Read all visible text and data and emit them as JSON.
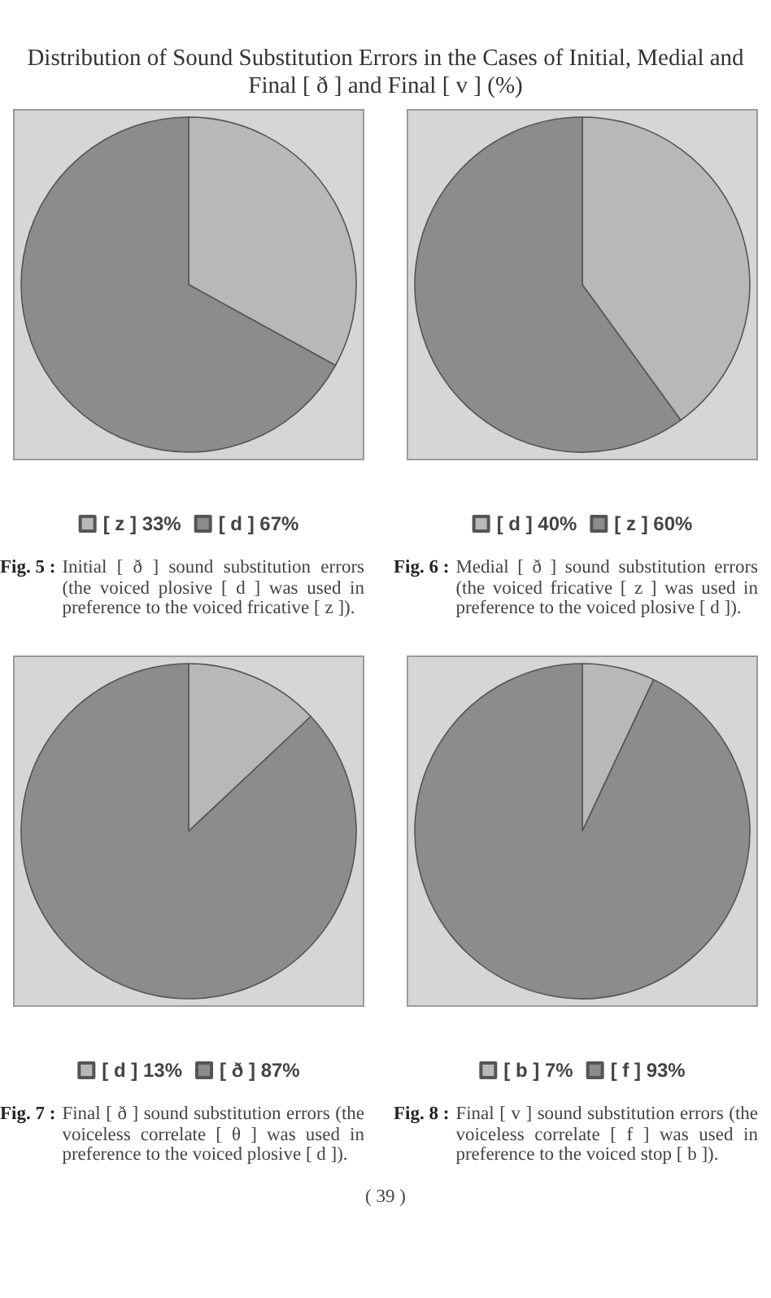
{
  "chart_data": [
    {
      "type": "pie",
      "title": "Distribution of Sound Substitution Errors in the Cases of Initial, Medial and Final [ ð ] and Final [ v ] (%)",
      "categories": [
        "[ z ]",
        "[ d ]"
      ],
      "values": [
        33,
        67
      ],
      "value_labels": [
        "33%",
        "67%"
      ],
      "colors": [
        "#b8b8b8",
        "#8c8c8c"
      ],
      "legend": "bottom",
      "annotations": [
        "Fig. 5 : Initial [ ð ] sound substitution errors (the voiced plosive [ d ] was used in preference to the voiced fricative [ z ])."
      ]
    },
    {
      "type": "pie",
      "categories": [
        "[ d ]",
        "[ z ]"
      ],
      "values": [
        40,
        60
      ],
      "value_labels": [
        "40%",
        "60%"
      ],
      "colors": [
        "#b8b8b8",
        "#8c8c8c"
      ],
      "legend": "bottom",
      "annotations": [
        "Fig. 6 : Medial [ ð ] sound substitution errors (the voiced fricative [ z ] was used in preference to the voiced plosive [ d ])."
      ]
    },
    {
      "type": "pie",
      "categories": [
        "[ d ]",
        "[ ð ]"
      ],
      "values": [
        13,
        87
      ],
      "value_labels": [
        "13%",
        "87%"
      ],
      "colors": [
        "#b8b8b8",
        "#8c8c8c"
      ],
      "legend": "bottom",
      "annotations": [
        "Fig. 7 : Final [ ð ] sound substitution errors (the voiceless correlate [ θ ] was used in preference to the voiced plosive [ d ])."
      ]
    },
    {
      "type": "pie",
      "categories": [
        "[ b ]",
        "[ f ]"
      ],
      "values": [
        7,
        93
      ],
      "value_labels": [
        "7%",
        "93%"
      ],
      "colors": [
        "#b8b8b8",
        "#8c8c8c"
      ],
      "legend": "bottom",
      "annotations": [
        "Fig. 8 : Final [ v ] sound substitution errors (the voiceless correlate [ f ] was used in preference to the voiced stop [ b ]).",
        "( 39 )"
      ]
    }
  ]
}
